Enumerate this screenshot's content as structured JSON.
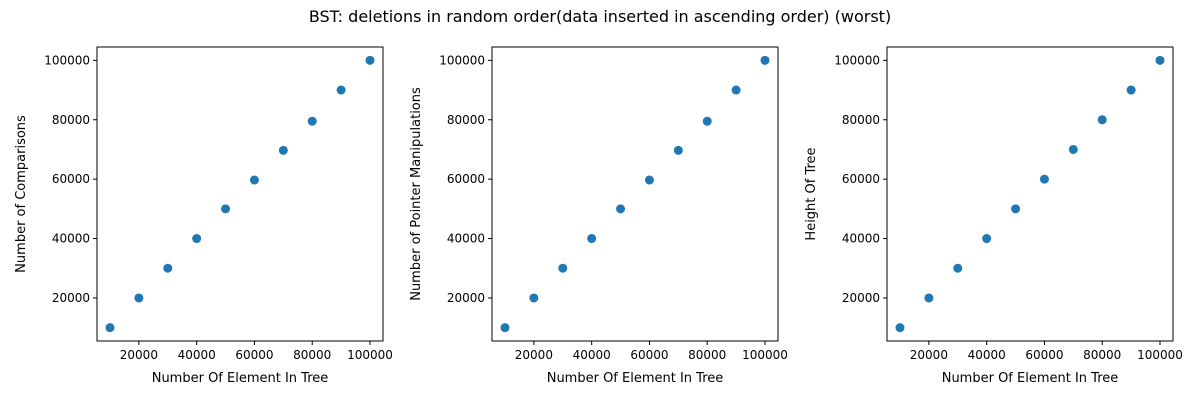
{
  "suptitle": "BST: deletions in random order(data inserted in ascending order) (worst)",
  "style": {
    "point_color": "#1f77b4",
    "axis_color": "#000000"
  },
  "chart_data": [
    {
      "type": "scatter",
      "title": "",
      "xlabel": "Number Of Element In Tree",
      "ylabel": "Number of Comparisons",
      "x": [
        10000,
        20000,
        30000,
        40000,
        50000,
        60000,
        70000,
        80000,
        90000,
        100000
      ],
      "y": [
        10000,
        20000,
        30000,
        40000,
        50000,
        59700,
        69700,
        79500,
        90000,
        100000
      ],
      "xlim": [
        5500,
        104500
      ],
      "ylim": [
        5500,
        104500
      ],
      "xticks": [
        20000,
        40000,
        60000,
        80000,
        100000
      ],
      "yticks": [
        20000,
        40000,
        60000,
        80000,
        100000
      ],
      "xtick_labels": [
        "20000",
        "40000",
        "60000",
        "80000",
        "100000"
      ],
      "ytick_labels": [
        "20000",
        "40000",
        "60000",
        "80000",
        "100000"
      ],
      "grid": false
    },
    {
      "type": "scatter",
      "title": "",
      "xlabel": "Number Of Element In Tree",
      "ylabel": "Number of Pointer Manipulations",
      "x": [
        10000,
        20000,
        30000,
        40000,
        50000,
        60000,
        70000,
        80000,
        90000,
        100000
      ],
      "y": [
        10000,
        20000,
        30000,
        40000,
        50000,
        59700,
        69700,
        79500,
        90000,
        100000
      ],
      "xlim": [
        5500,
        104500
      ],
      "ylim": [
        5500,
        104500
      ],
      "xticks": [
        20000,
        40000,
        60000,
        80000,
        100000
      ],
      "yticks": [
        20000,
        40000,
        60000,
        80000,
        100000
      ],
      "xtick_labels": [
        "20000",
        "40000",
        "60000",
        "80000",
        "100000"
      ],
      "ytick_labels": [
        "20000",
        "40000",
        "60000",
        "80000",
        "100000"
      ],
      "grid": false
    },
    {
      "type": "scatter",
      "title": "",
      "xlabel": "Number Of Element In Tree",
      "ylabel": "Height Of Tree",
      "x": [
        10000,
        20000,
        30000,
        40000,
        50000,
        60000,
        70000,
        80000,
        90000,
        100000
      ],
      "y": [
        10000,
        20000,
        30000,
        40000,
        50000,
        60000,
        70000,
        80000,
        90000,
        100000
      ],
      "xlim": [
        5500,
        104500
      ],
      "ylim": [
        5500,
        104500
      ],
      "xticks": [
        20000,
        40000,
        60000,
        80000,
        100000
      ],
      "yticks": [
        20000,
        40000,
        60000,
        80000,
        100000
      ],
      "xtick_labels": [
        "20000",
        "40000",
        "60000",
        "80000",
        "100000"
      ],
      "ytick_labels": [
        "20000",
        "40000",
        "60000",
        "80000",
        "100000"
      ],
      "grid": false
    }
  ]
}
